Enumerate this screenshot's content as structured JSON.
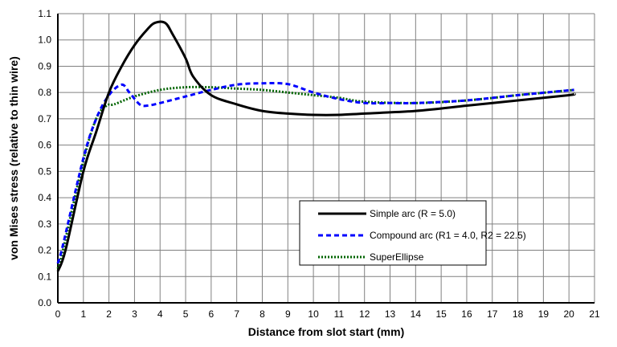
{
  "chart_data": {
    "type": "line",
    "title": "",
    "xlabel": "Distance from slot start (mm)",
    "ylabel": "von Mises stress (relative to thin wire)",
    "xlim": [
      0,
      21
    ],
    "ylim": [
      0,
      1.1
    ],
    "xticks": [
      "0",
      "1",
      "2",
      "3",
      "4",
      "5",
      "6",
      "7",
      "8",
      "9",
      "10",
      "11",
      "12",
      "13",
      "14",
      "15",
      "16",
      "17",
      "18",
      "19",
      "20",
      "21"
    ],
    "yticks": [
      "0.0",
      "0.1",
      "0.2",
      "0.3",
      "0.4",
      "0.5",
      "0.6",
      "0.7",
      "0.8",
      "0.9",
      "1.0",
      "1.1"
    ],
    "grid": true,
    "legend_position": "bottom-right",
    "series": [
      {
        "name": "Simple arc (R = 5.0)",
        "color": "#000000",
        "style": "solid",
        "points": [
          [
            0,
            0.12
          ],
          [
            0.3,
            0.2
          ],
          [
            1,
            0.5
          ],
          [
            1.5,
            0.65
          ],
          [
            2,
            0.8
          ],
          [
            2.5,
            0.9
          ],
          [
            3,
            0.98
          ],
          [
            3.5,
            1.04
          ],
          [
            3.8,
            1.065
          ],
          [
            4.2,
            1.065
          ],
          [
            4.5,
            1.02
          ],
          [
            5,
            0.93
          ],
          [
            5.3,
            0.86
          ],
          [
            6,
            0.79
          ],
          [
            7,
            0.755
          ],
          [
            8,
            0.73
          ],
          [
            9,
            0.72
          ],
          [
            10,
            0.715
          ],
          [
            11,
            0.715
          ],
          [
            12,
            0.72
          ],
          [
            14,
            0.73
          ],
          [
            16,
            0.75
          ],
          [
            18,
            0.77
          ],
          [
            20,
            0.79
          ],
          [
            20.2,
            0.795
          ]
        ]
      },
      {
        "name": "Compound arc (R1 = 4.0, R2 = 22.5)",
        "color": "#0000ff",
        "style": "dashed",
        "points": [
          [
            0,
            0.15
          ],
          [
            0.2,
            0.22
          ],
          [
            1,
            0.55
          ],
          [
            1.5,
            0.7
          ],
          [
            2,
            0.79
          ],
          [
            2.5,
            0.83
          ],
          [
            2.8,
            0.8
          ],
          [
            3.2,
            0.755
          ],
          [
            3.5,
            0.75
          ],
          [
            4,
            0.76
          ],
          [
            5,
            0.785
          ],
          [
            6,
            0.81
          ],
          [
            7,
            0.83
          ],
          [
            8,
            0.835
          ],
          [
            9,
            0.832
          ],
          [
            10,
            0.8
          ],
          [
            11,
            0.775
          ],
          [
            12,
            0.76
          ],
          [
            13,
            0.76
          ],
          [
            14,
            0.76
          ],
          [
            16,
            0.77
          ],
          [
            18,
            0.79
          ],
          [
            20.2,
            0.81
          ]
        ]
      },
      {
        "name": "SuperEllipse",
        "color": "#006400",
        "style": "dotted",
        "points": [
          [
            0,
            0.13
          ],
          [
            0.2,
            0.2
          ],
          [
            1,
            0.54
          ],
          [
            1.5,
            0.7
          ],
          [
            1.9,
            0.75
          ],
          [
            2.2,
            0.755
          ],
          [
            3,
            0.785
          ],
          [
            4,
            0.81
          ],
          [
            5,
            0.82
          ],
          [
            6,
            0.82
          ],
          [
            7,
            0.815
          ],
          [
            8,
            0.81
          ],
          [
            9,
            0.8
          ],
          [
            10,
            0.79
          ],
          [
            11,
            0.78
          ],
          [
            12,
            0.765
          ],
          [
            14,
            0.76
          ],
          [
            16,
            0.77
          ],
          [
            18,
            0.79
          ],
          [
            20.2,
            0.81
          ]
        ]
      }
    ]
  }
}
